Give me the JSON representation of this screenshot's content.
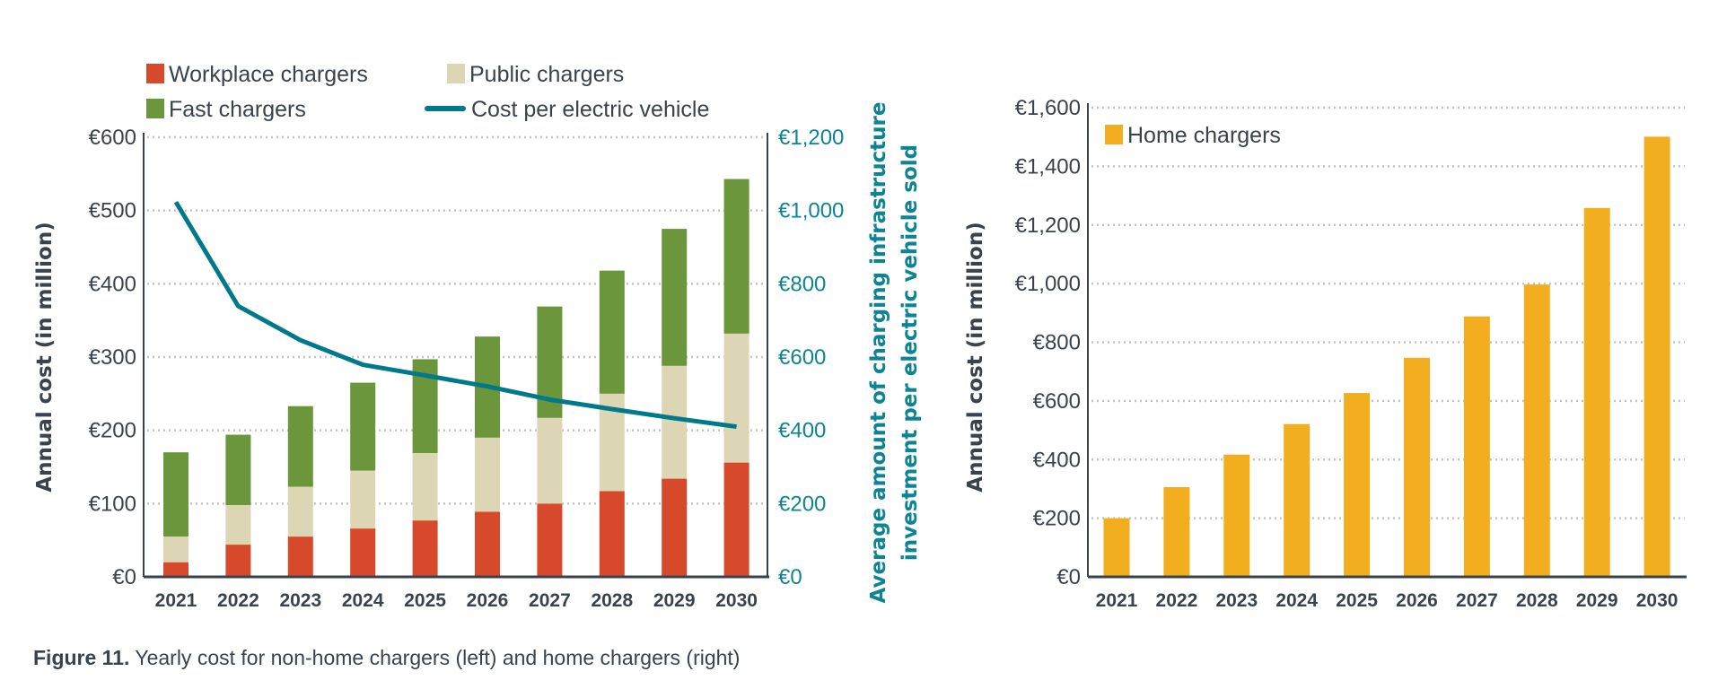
{
  "caption": {
    "label": "Figure 11.",
    "text": " Yearly cost for non-home chargers (left) and home chargers (right)"
  },
  "chart_data": [
    {
      "type": "bar",
      "stacked": true,
      "categories": [
        "2021",
        "2022",
        "2023",
        "2024",
        "2025",
        "2026",
        "2027",
        "2028",
        "2029",
        "2030"
      ],
      "ylabel": "Annual cost (in million)",
      "ylim": [
        0,
        600
      ],
      "yticks": [
        "€0",
        "€100",
        "€200",
        "€300",
        "€400",
        "€500",
        "€600"
      ],
      "y2label": [
        "Average amount of charging infrastructure",
        "investment per electric vehicle sold"
      ],
      "y2lim": [
        0,
        1200
      ],
      "y2ticks": [
        "€0",
        "€200",
        "€400",
        "€600",
        "€800",
        "€1,000",
        "€1,200"
      ],
      "grid": true,
      "legend_placement": "top",
      "series": [
        {
          "name": "Workplace chargers",
          "color": "#d64a2b",
          "values": [
            20,
            44,
            55,
            66,
            77,
            89,
            100,
            117,
            134,
            156
          ]
        },
        {
          "name": "Public chargers",
          "color": "#ddd6b5",
          "values": [
            35,
            54,
            68,
            79,
            92,
            101,
            117,
            133,
            154,
            176
          ]
        },
        {
          "name": "Fast chargers",
          "color": "#6b963c",
          "values": [
            115,
            96,
            110,
            120,
            128,
            138,
            152,
            168,
            187,
            211
          ]
        },
        {
          "name": "Cost per electric vehicle",
          "type": "line",
          "axis": "right",
          "color": "#007a8a",
          "values": [
            1023,
            739,
            646,
            579,
            550,
            520,
            484,
            458,
            433,
            410
          ]
        }
      ]
    },
    {
      "type": "bar",
      "categories": [
        "2021",
        "2022",
        "2023",
        "2024",
        "2025",
        "2026",
        "2027",
        "2028",
        "2029",
        "2030"
      ],
      "ylabel": "Annual cost (in million)",
      "ylim": [
        0,
        1600
      ],
      "yticks": [
        "€0",
        "€200",
        "€400",
        "€600",
        "€800",
        "€1,000",
        "€1,200",
        "€1,400",
        "€1,600"
      ],
      "grid": true,
      "legend_placement": "top-left",
      "series": [
        {
          "name": "Home chargers",
          "color": "#f2ae1f",
          "values": [
            200,
            306,
            417,
            521,
            627,
            747,
            888,
            997,
            1258,
            1501
          ]
        }
      ]
    }
  ]
}
